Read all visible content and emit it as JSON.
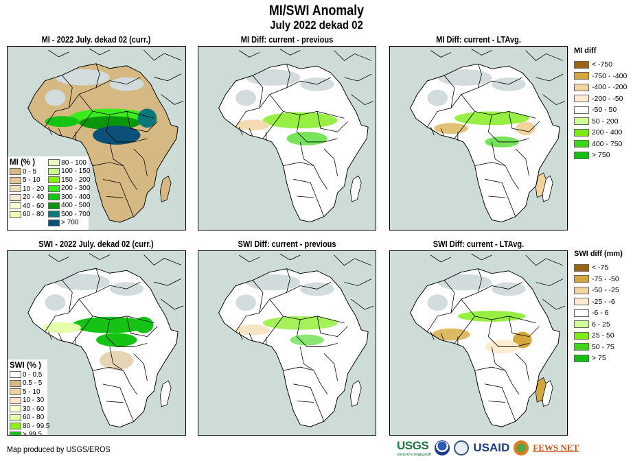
{
  "header": {
    "title": "MI/SWI Anomaly",
    "subtitle": "July 2022 dekad 02"
  },
  "panels": [
    {
      "id": "mi-current",
      "title": "MI - 2022 July. dekad 02 (curr.)",
      "variable": "MI",
      "kind": "current"
    },
    {
      "id": "mi-diff-prev",
      "title": "MI Diff: current - previous",
      "variable": "MI",
      "kind": "diff-previous"
    },
    {
      "id": "mi-diff-lta",
      "title": "MI Diff: current - LTAvg.",
      "variable": "MI",
      "kind": "diff-ltavg"
    },
    {
      "id": "swi-current",
      "title": "SWI - 2022 July. dekad 02 (curr.)",
      "variable": "SWI",
      "kind": "current"
    },
    {
      "id": "swi-diff-prev",
      "title": "SWI Diff: current - previous",
      "variable": "SWI",
      "kind": "diff-previous"
    },
    {
      "id": "swi-diff-lta",
      "title": "SWI Diff: current - LTAvg.",
      "variable": "SWI",
      "kind": "diff-ltavg"
    }
  ],
  "legends": {
    "mi_percent": {
      "title": "MI (% )",
      "col1": [
        {
          "label": "0 - 5",
          "color": "#d6b882"
        },
        {
          "label": "5 - 10",
          "color": "#e2c896"
        },
        {
          "label": "10 - 20",
          "color": "#eedcbe"
        },
        {
          "label": "20 - 40",
          "color": "#f6e8d8"
        },
        {
          "label": "40 - 60",
          "color": "#ffffd2"
        },
        {
          "label": "60 - 80",
          "color": "#f0ffb4"
        }
      ],
      "col2": [
        {
          "label": "80 - 100",
          "color": "#e6ffbe"
        },
        {
          "label": "100 - 150",
          "color": "#c8ff8c"
        },
        {
          "label": "150 - 200",
          "color": "#8cf014"
        },
        {
          "label": "200 - 300",
          "color": "#3ceb1e"
        },
        {
          "label": "300 - 400",
          "color": "#14c314"
        },
        {
          "label": "400 - 500",
          "color": "#0a960a"
        },
        {
          "label": "500 - 700",
          "color": "#0a7878"
        },
        {
          "label": "> 700",
          "color": "#0a5078"
        }
      ]
    },
    "swi_percent": {
      "title": "SWI (% )",
      "items": [
        {
          "label": "0 - 0.5",
          "color": "#ffffff"
        },
        {
          "label": "0.5 - 5",
          "color": "#d6b882"
        },
        {
          "label": "5 - 10",
          "color": "#f0d2a0"
        },
        {
          "label": "10 - 30",
          "color": "#fde6c8"
        },
        {
          "label": "30 - 60",
          "color": "#ffffd2"
        },
        {
          "label": "60 - 80",
          "color": "#e6ffaa"
        },
        {
          "label": "80 - 99.5",
          "color": "#8cf014"
        },
        {
          "label": "> 99.5",
          "color": "#14c314"
        }
      ]
    },
    "mi_diff": {
      "title": "MI diff",
      "items": [
        {
          "label": "< -750",
          "color": "#9a6414"
        },
        {
          "label": "-750 - -400",
          "color": "#d4a73c"
        },
        {
          "label": "-400 - -200",
          "color": "#f2d29e"
        },
        {
          "label": "-200 - -50",
          "color": "#fdebd2"
        },
        {
          "label": "-50 - 50",
          "color": "#ffffff"
        },
        {
          "label": "50 - 200",
          "color": "#d2ff96"
        },
        {
          "label": "200 - 400",
          "color": "#7deb14"
        },
        {
          "label": "400 - 750",
          "color": "#3cd714"
        },
        {
          "label": "> 750",
          "color": "#14be14"
        }
      ]
    },
    "swi_diff": {
      "title": "SWI diff (mm)",
      "items": [
        {
          "label": "< -75",
          "color": "#9a6414"
        },
        {
          "label": "-75 - -50",
          "color": "#d4a73c"
        },
        {
          "label": "-50 - -25",
          "color": "#f2d29e"
        },
        {
          "label": "-25 - -6",
          "color": "#fdebd2"
        },
        {
          "label": "-6 - 6",
          "color": "#ffffff"
        },
        {
          "label": "6 - 25",
          "color": "#d2ff96"
        },
        {
          "label": "25 - 50",
          "color": "#7deb14"
        },
        {
          "label": "50 - 75",
          "color": "#3cd714"
        },
        {
          "label": "> 75",
          "color": "#14be14"
        }
      ]
    }
  },
  "colors": {
    "ocean": "#cddcd6",
    "desert_nodata": "#d2dcdc",
    "border": "#000000"
  },
  "footer": {
    "credit": "Map produced by USGS/EROS",
    "logos": {
      "usgs": "USGS",
      "usgs_tagline": "science for a changing world",
      "usaid": "USAID",
      "fews": "FEWS NET"
    }
  }
}
